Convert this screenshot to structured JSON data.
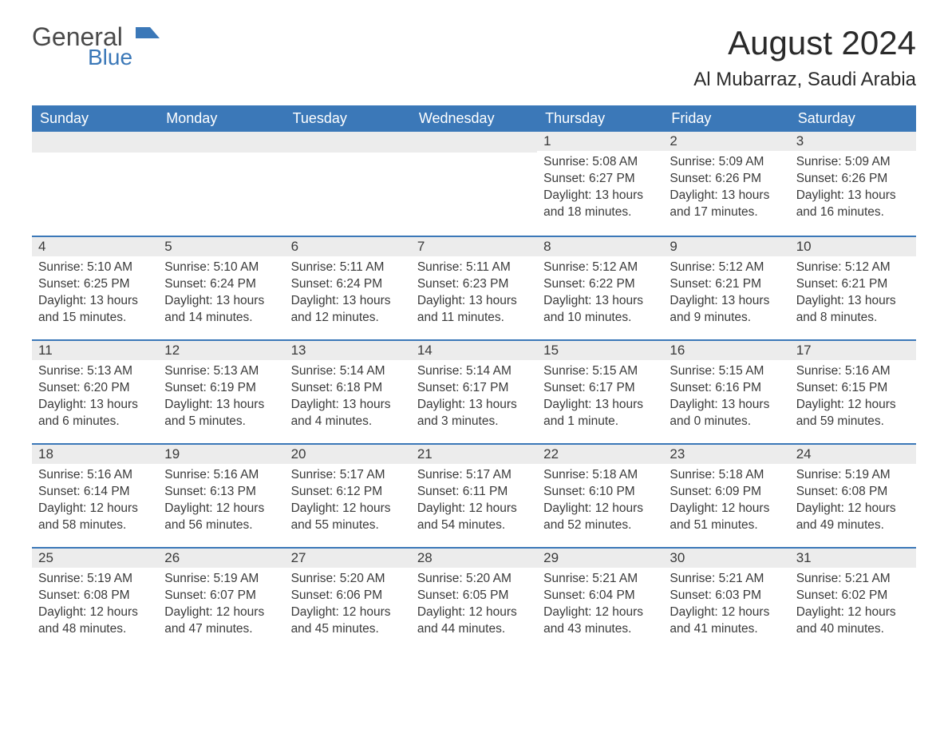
{
  "logo": {
    "main": "General",
    "sub": "Blue"
  },
  "title": "August 2024",
  "location": "Al Mubarraz, Saudi Arabia",
  "colors": {
    "header_bg": "#3b78b8",
    "header_text": "#ffffff",
    "daynum_bg": "#ececec",
    "border": "#3b78b8",
    "body_text": "#3a3a3a",
    "page_bg": "#ffffff"
  },
  "font": {
    "family": "Arial",
    "title_size": 42,
    "location_size": 24,
    "th_size": 18,
    "cell_size": 15.5
  },
  "weekdays": [
    "Sunday",
    "Monday",
    "Tuesday",
    "Wednesday",
    "Thursday",
    "Friday",
    "Saturday"
  ],
  "weeks": [
    [
      null,
      null,
      null,
      null,
      {
        "n": "1",
        "sr": "5:08 AM",
        "ss": "6:27 PM",
        "dh": "13",
        "dm": "18"
      },
      {
        "n": "2",
        "sr": "5:09 AM",
        "ss": "6:26 PM",
        "dh": "13",
        "dm": "17"
      },
      {
        "n": "3",
        "sr": "5:09 AM",
        "ss": "6:26 PM",
        "dh": "13",
        "dm": "16"
      }
    ],
    [
      {
        "n": "4",
        "sr": "5:10 AM",
        "ss": "6:25 PM",
        "dh": "13",
        "dm": "15"
      },
      {
        "n": "5",
        "sr": "5:10 AM",
        "ss": "6:24 PM",
        "dh": "13",
        "dm": "14"
      },
      {
        "n": "6",
        "sr": "5:11 AM",
        "ss": "6:24 PM",
        "dh": "13",
        "dm": "12"
      },
      {
        "n": "7",
        "sr": "5:11 AM",
        "ss": "6:23 PM",
        "dh": "13",
        "dm": "11"
      },
      {
        "n": "8",
        "sr": "5:12 AM",
        "ss": "6:22 PM",
        "dh": "13",
        "dm": "10"
      },
      {
        "n": "9",
        "sr": "5:12 AM",
        "ss": "6:21 PM",
        "dh": "13",
        "dm": "9"
      },
      {
        "n": "10",
        "sr": "5:12 AM",
        "ss": "6:21 PM",
        "dh": "13",
        "dm": "8"
      }
    ],
    [
      {
        "n": "11",
        "sr": "5:13 AM",
        "ss": "6:20 PM",
        "dh": "13",
        "dm": "6"
      },
      {
        "n": "12",
        "sr": "5:13 AM",
        "ss": "6:19 PM",
        "dh": "13",
        "dm": "5"
      },
      {
        "n": "13",
        "sr": "5:14 AM",
        "ss": "6:18 PM",
        "dh": "13",
        "dm": "4"
      },
      {
        "n": "14",
        "sr": "5:14 AM",
        "ss": "6:17 PM",
        "dh": "13",
        "dm": "3"
      },
      {
        "n": "15",
        "sr": "5:15 AM",
        "ss": "6:17 PM",
        "dh": "13",
        "dm": "1"
      },
      {
        "n": "16",
        "sr": "5:15 AM",
        "ss": "6:16 PM",
        "dh": "13",
        "dm": "0"
      },
      {
        "n": "17",
        "sr": "5:16 AM",
        "ss": "6:15 PM",
        "dh": "12",
        "dm": "59"
      }
    ],
    [
      {
        "n": "18",
        "sr": "5:16 AM",
        "ss": "6:14 PM",
        "dh": "12",
        "dm": "58"
      },
      {
        "n": "19",
        "sr": "5:16 AM",
        "ss": "6:13 PM",
        "dh": "12",
        "dm": "56"
      },
      {
        "n": "20",
        "sr": "5:17 AM",
        "ss": "6:12 PM",
        "dh": "12",
        "dm": "55"
      },
      {
        "n": "21",
        "sr": "5:17 AM",
        "ss": "6:11 PM",
        "dh": "12",
        "dm": "54"
      },
      {
        "n": "22",
        "sr": "5:18 AM",
        "ss": "6:10 PM",
        "dh": "12",
        "dm": "52"
      },
      {
        "n": "23",
        "sr": "5:18 AM",
        "ss": "6:09 PM",
        "dh": "12",
        "dm": "51"
      },
      {
        "n": "24",
        "sr": "5:19 AM",
        "ss": "6:08 PM",
        "dh": "12",
        "dm": "49"
      }
    ],
    [
      {
        "n": "25",
        "sr": "5:19 AM",
        "ss": "6:08 PM",
        "dh": "12",
        "dm": "48"
      },
      {
        "n": "26",
        "sr": "5:19 AM",
        "ss": "6:07 PM",
        "dh": "12",
        "dm": "47"
      },
      {
        "n": "27",
        "sr": "5:20 AM",
        "ss": "6:06 PM",
        "dh": "12",
        "dm": "45"
      },
      {
        "n": "28",
        "sr": "5:20 AM",
        "ss": "6:05 PM",
        "dh": "12",
        "dm": "44"
      },
      {
        "n": "29",
        "sr": "5:21 AM",
        "ss": "6:04 PM",
        "dh": "12",
        "dm": "43"
      },
      {
        "n": "30",
        "sr": "5:21 AM",
        "ss": "6:03 PM",
        "dh": "12",
        "dm": "41"
      },
      {
        "n": "31",
        "sr": "5:21 AM",
        "ss": "6:02 PM",
        "dh": "12",
        "dm": "40"
      }
    ]
  ]
}
